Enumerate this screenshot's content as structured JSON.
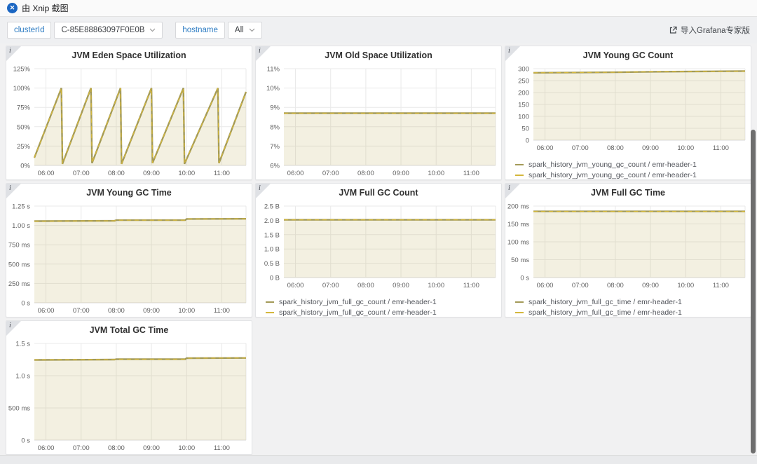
{
  "app": {
    "title": "由 Xnip 截图",
    "logo_glyph": "✕"
  },
  "toolbar": {
    "variables": [
      {
        "label": "clusterId",
        "value": "C-85E88863097F0E0B"
      },
      {
        "label": "hostname",
        "value": "All"
      }
    ],
    "import_link": "导入Grafana专家版"
  },
  "colors": {
    "accent_blue": "#2d7cc3",
    "series_olive": "#a39a58",
    "series_yellow": "#d4b73c",
    "area_fill": "rgba(186,170,90,0.18)",
    "grid_line": "#e9e9e9",
    "axis_text": "#5f5f5f"
  },
  "chart_data": [
    {
      "type": "area",
      "title": "JVM Eden Space Utilization",
      "x_range": [
        5.67,
        11.69
      ],
      "x_ticks": [
        {
          "t": 6,
          "label": "06:00"
        },
        {
          "t": 7,
          "label": "07:00"
        },
        {
          "t": 8,
          "label": "08:00"
        },
        {
          "t": 9,
          "label": "09:00"
        },
        {
          "t": 10,
          "label": "10:00"
        },
        {
          "t": 11,
          "label": "11:00"
        }
      ],
      "ylim": [
        0,
        1.25
      ],
      "y_ticks": [
        {
          "v": 0,
          "label": "0%"
        },
        {
          "v": 0.25,
          "label": "25%"
        },
        {
          "v": 0.5,
          "label": "50%"
        },
        {
          "v": 0.75,
          "label": "75%"
        },
        {
          "v": 1,
          "label": "100%"
        },
        {
          "v": 1.25,
          "label": "125%"
        }
      ],
      "series": [
        {
          "color": "#a39a58"
        },
        {
          "color": "#d4b73c"
        }
      ],
      "points": [
        [
          5.67,
          0.1
        ],
        [
          6.44,
          1.0
        ],
        [
          6.47,
          0.02
        ],
        [
          7.28,
          1.0
        ],
        [
          7.31,
          0.03
        ],
        [
          8.12,
          1.0
        ],
        [
          8.15,
          0.02
        ],
        [
          9.0,
          1.0
        ],
        [
          9.03,
          0.03
        ],
        [
          9.91,
          1.0
        ],
        [
          9.94,
          0.02
        ],
        [
          10.89,
          1.0
        ],
        [
          10.92,
          0.03
        ],
        [
          11.69,
          0.95
        ]
      ],
      "legend": []
    },
    {
      "type": "area",
      "title": "JVM Old Space Utilization",
      "x_range": [
        5.67,
        11.69
      ],
      "x_ticks": [
        {
          "t": 6,
          "label": "06:00"
        },
        {
          "t": 7,
          "label": "07:00"
        },
        {
          "t": 8,
          "label": "08:00"
        },
        {
          "t": 9,
          "label": "09:00"
        },
        {
          "t": 10,
          "label": "10:00"
        },
        {
          "t": 11,
          "label": "11:00"
        }
      ],
      "ylim": [
        0.06,
        0.11
      ],
      "y_ticks": [
        {
          "v": 0.06,
          "label": "6%"
        },
        {
          "v": 0.07,
          "label": "7%"
        },
        {
          "v": 0.08,
          "label": "8%"
        },
        {
          "v": 0.09,
          "label": "9%"
        },
        {
          "v": 0.1,
          "label": "10%"
        },
        {
          "v": 0.11,
          "label": "11%"
        }
      ],
      "series": [
        {
          "color": "#a39a58"
        },
        {
          "color": "#d4b73c"
        }
      ],
      "points": [
        [
          5.67,
          0.087
        ],
        [
          11.69,
          0.087
        ]
      ],
      "legend": []
    },
    {
      "type": "area",
      "title": "JVM Young GC Count",
      "x_range": [
        5.67,
        11.69
      ],
      "x_ticks": [
        {
          "t": 6,
          "label": "06:00"
        },
        {
          "t": 7,
          "label": "07:00"
        },
        {
          "t": 8,
          "label": "08:00"
        },
        {
          "t": 9,
          "label": "09:00"
        },
        {
          "t": 10,
          "label": "10:00"
        },
        {
          "t": 11,
          "label": "11:00"
        }
      ],
      "ylim": [
        0,
        300
      ],
      "y_ticks": [
        {
          "v": 0,
          "label": "0"
        },
        {
          "v": 50,
          "label": "50"
        },
        {
          "v": 100,
          "label": "100"
        },
        {
          "v": 150,
          "label": "150"
        },
        {
          "v": 200,
          "label": "200"
        },
        {
          "v": 250,
          "label": "250"
        },
        {
          "v": 300,
          "label": "300"
        }
      ],
      "series": [
        {
          "name": "spark_history_jvm_young_gc_count / emr-header-1",
          "color": "#a39a58"
        },
        {
          "name": "spark_history_jvm_young_gc_count / emr-header-1",
          "color": "#d4b73c"
        }
      ],
      "points": [
        [
          5.67,
          283
        ],
        [
          7,
          284
        ],
        [
          8,
          285
        ],
        [
          9,
          287
        ],
        [
          10,
          288
        ],
        [
          11,
          289
        ],
        [
          11.69,
          290
        ]
      ],
      "legend": [
        {
          "label": "spark_history_jvm_young_gc_count / emr-header-1",
          "color": "#a39a58"
        },
        {
          "label": "spark_history_jvm_young_gc_count / emr-header-1",
          "color": "#d4b73c"
        }
      ]
    },
    {
      "type": "area",
      "title": "JVM Young GC Time",
      "x_range": [
        5.67,
        11.69
      ],
      "x_ticks": [
        {
          "t": 6,
          "label": "06:00"
        },
        {
          "t": 7,
          "label": "07:00"
        },
        {
          "t": 8,
          "label": "08:00"
        },
        {
          "t": 9,
          "label": "09:00"
        },
        {
          "t": 10,
          "label": "10:00"
        },
        {
          "t": 11,
          "label": "11:00"
        }
      ],
      "ylim": [
        0,
        1.25
      ],
      "y_ticks": [
        {
          "v": 0,
          "label": "0 s"
        },
        {
          "v": 0.25,
          "label": "250 ms"
        },
        {
          "v": 0.5,
          "label": "500 ms"
        },
        {
          "v": 0.75,
          "label": "750 ms"
        },
        {
          "v": 1.0,
          "label": "1.00 s"
        },
        {
          "v": 1.25,
          "label": "1.25 s"
        }
      ],
      "series": [
        {
          "color": "#a39a58"
        },
        {
          "color": "#d4b73c"
        }
      ],
      "points": [
        [
          5.67,
          1.055
        ],
        [
          7.95,
          1.06
        ],
        [
          8.0,
          1.068
        ],
        [
          9.96,
          1.068
        ],
        [
          10.0,
          1.083
        ],
        [
          11.69,
          1.085
        ]
      ],
      "legend": []
    },
    {
      "type": "area",
      "title": "JVM Full GC Count",
      "x_range": [
        5.67,
        11.69
      ],
      "x_ticks": [
        {
          "t": 6,
          "label": "06:00"
        },
        {
          "t": 7,
          "label": "07:00"
        },
        {
          "t": 8,
          "label": "08:00"
        },
        {
          "t": 9,
          "label": "09:00"
        },
        {
          "t": 10,
          "label": "10:00"
        },
        {
          "t": 11,
          "label": "11:00"
        }
      ],
      "ylim": [
        0,
        2.5
      ],
      "y_ticks": [
        {
          "v": 0,
          "label": "0 B"
        },
        {
          "v": 0.5,
          "label": "0.5 B"
        },
        {
          "v": 1.0,
          "label": "1.0 B"
        },
        {
          "v": 1.5,
          "label": "1.5 B"
        },
        {
          "v": 2.0,
          "label": "2.0 B"
        },
        {
          "v": 2.5,
          "label": "2.5 B"
        }
      ],
      "series": [
        {
          "name": "spark_history_jvm_full_gc_count / emr-header-1",
          "color": "#a39a58"
        },
        {
          "name": "spark_history_jvm_full_gc_count / emr-header-1",
          "color": "#d4b73c"
        }
      ],
      "points": [
        [
          5.67,
          2.02
        ],
        [
          11.69,
          2.02
        ]
      ],
      "legend": [
        {
          "label": "spark_history_jvm_full_gc_count / emr-header-1",
          "color": "#a39a58"
        },
        {
          "label": "spark_history_jvm_full_gc_count / emr-header-1",
          "color": "#d4b73c"
        }
      ]
    },
    {
      "type": "area",
      "title": "JVM Full GC Time",
      "x_range": [
        5.67,
        11.69
      ],
      "x_ticks": [
        {
          "t": 6,
          "label": "06:00"
        },
        {
          "t": 7,
          "label": "07:00"
        },
        {
          "t": 8,
          "label": "08:00"
        },
        {
          "t": 9,
          "label": "09:00"
        },
        {
          "t": 10,
          "label": "10:00"
        },
        {
          "t": 11,
          "label": "11:00"
        }
      ],
      "ylim": [
        0,
        200
      ],
      "y_ticks": [
        {
          "v": 0,
          "label": "0 s"
        },
        {
          "v": 50,
          "label": "50 ms"
        },
        {
          "v": 100,
          "label": "100 ms"
        },
        {
          "v": 150,
          "label": "150 ms"
        },
        {
          "v": 200,
          "label": "200 ms"
        }
      ],
      "series": [
        {
          "name": "spark_history_jvm_full_gc_time / emr-header-1",
          "color": "#a39a58"
        },
        {
          "name": "spark_history_jvm_full_gc_time / emr-header-1",
          "color": "#d4b73c"
        }
      ],
      "points": [
        [
          5.67,
          185
        ],
        [
          11.69,
          185
        ]
      ],
      "legend": [
        {
          "label": "spark_history_jvm_full_gc_time / emr-header-1",
          "color": "#a39a58"
        },
        {
          "label": "spark_history_jvm_full_gc_time / emr-header-1",
          "color": "#d4b73c"
        }
      ]
    },
    {
      "type": "area",
      "title": "JVM Total GC Time",
      "x_range": [
        5.67,
        11.69
      ],
      "x_ticks": [
        {
          "t": 6,
          "label": "06:00"
        },
        {
          "t": 7,
          "label": "07:00"
        },
        {
          "t": 8,
          "label": "08:00"
        },
        {
          "t": 9,
          "label": "09:00"
        },
        {
          "t": 10,
          "label": "10:00"
        },
        {
          "t": 11,
          "label": "11:00"
        }
      ],
      "ylim": [
        0,
        1.5
      ],
      "y_ticks": [
        {
          "v": 0,
          "label": "0 s"
        },
        {
          "v": 0.5,
          "label": "500 ms"
        },
        {
          "v": 1.0,
          "label": "1.0 s"
        },
        {
          "v": 1.5,
          "label": "1.5 s"
        }
      ],
      "series": [
        {
          "color": "#a39a58"
        },
        {
          "color": "#d4b73c"
        }
      ],
      "points": [
        [
          5.67,
          1.245
        ],
        [
          7.95,
          1.25
        ],
        [
          8.0,
          1.255
        ],
        [
          9.96,
          1.255
        ],
        [
          10.0,
          1.272
        ],
        [
          11.69,
          1.275
        ]
      ],
      "legend": []
    }
  ]
}
